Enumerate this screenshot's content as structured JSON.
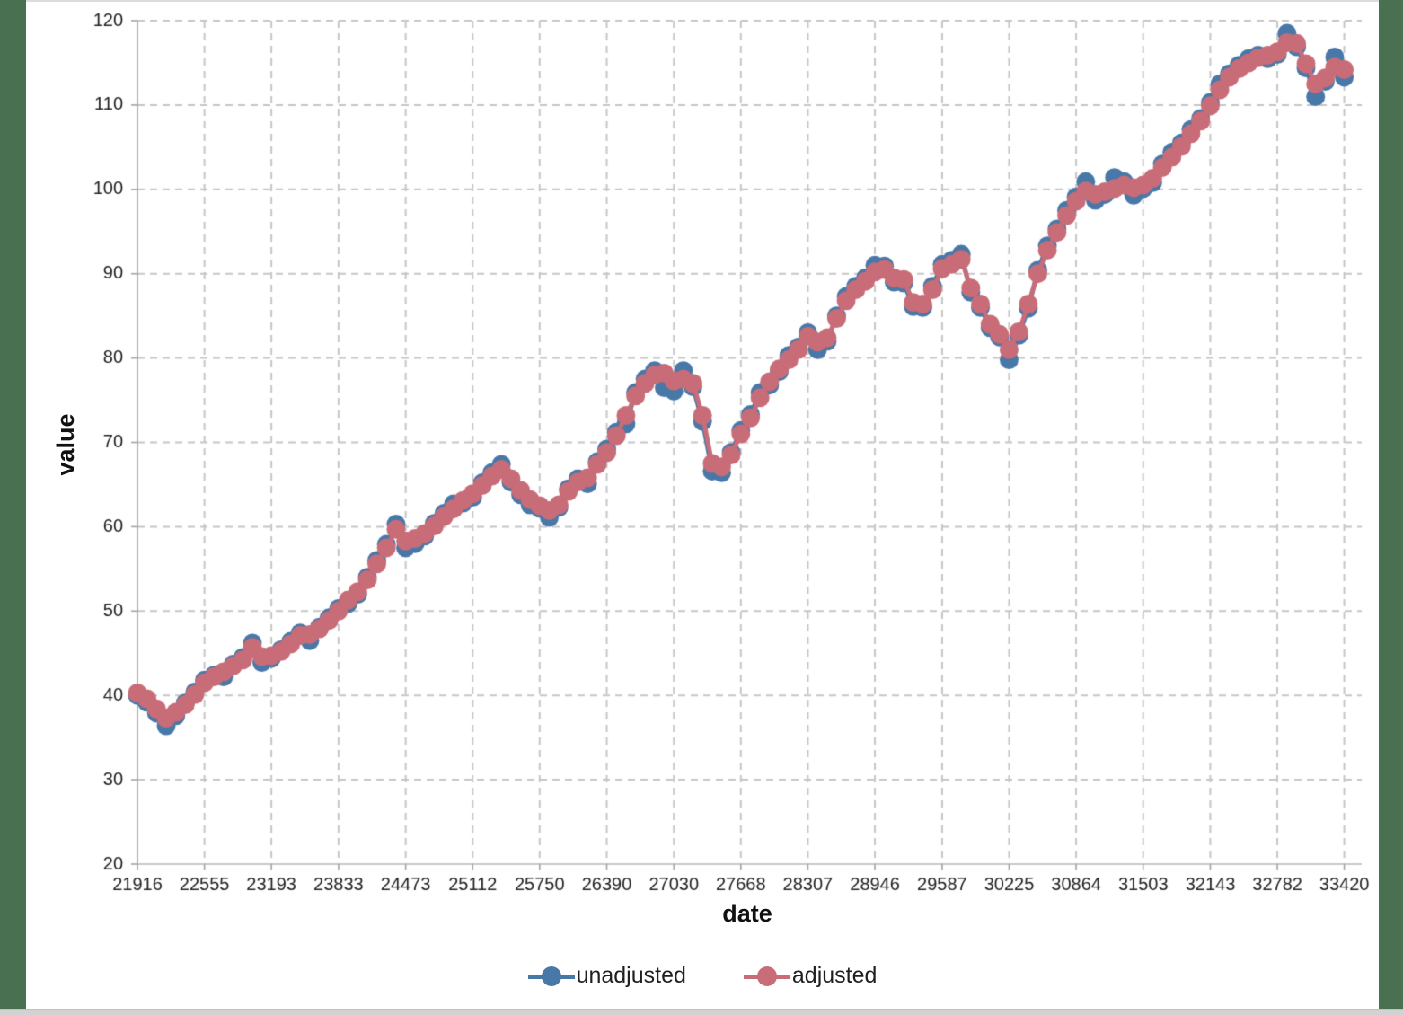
{
  "frame": {
    "side_border_color": "#4a7052",
    "top_line_color": "#dcdcdc",
    "bottom_bar_color": "#d2d2d2"
  },
  "legend": {
    "items": [
      {
        "label": "unadjusted",
        "color": "#4878a8"
      },
      {
        "label": "adjusted",
        "color": "#c86c78"
      }
    ]
  },
  "chart_data": {
    "type": "line",
    "title": "",
    "xlabel": "date",
    "ylabel": "value",
    "xlim": [
      21916,
      33580
    ],
    "ylim": [
      20,
      120
    ],
    "grid": "dashed, both axes",
    "legend_position": "bottom center",
    "grid_color": "#c6c6c6",
    "axis_color": "#a3a3a3",
    "tick_label_color": "#1f1f1f",
    "marker_style": "filled circle, overlapping chain",
    "x_ticks": [
      21916,
      22555,
      23193,
      23833,
      24473,
      25112,
      25750,
      26390,
      27030,
      27668,
      28307,
      28946,
      29587,
      30225,
      30864,
      31503,
      32143,
      32782,
      33420
    ],
    "y_ticks": [
      20,
      30,
      40,
      50,
      60,
      70,
      80,
      90,
      100,
      110,
      120
    ],
    "x": [
      21916,
      22007,
      22098,
      22190,
      22282,
      22372,
      22463,
      22555,
      22647,
      22737,
      22828,
      22920,
      23012,
      23102,
      23193,
      23285,
      23377,
      23468,
      23559,
      23651,
      23743,
      23833,
      23924,
      24016,
      24108,
      24198,
      24289,
      24381,
      24473,
      24563,
      24654,
      24746,
      24838,
      24929,
      25020,
      25112,
      25204,
      25294,
      25385,
      25477,
      25569,
      25659,
      25750,
      25842,
      25934,
      26024,
      26115,
      26207,
      26299,
      26390,
      26481,
      26573,
      26665,
      26755,
      26846,
      26938,
      27030,
      27120,
      27211,
      27303,
      27395,
      27485,
      27576,
      27668,
      27760,
      27851,
      27942,
      28034,
      28126,
      28216,
      28307,
      28399,
      28491,
      28581,
      28672,
      28764,
      28856,
      28946,
      29037,
      29129,
      29221,
      29312,
      29403,
      29495,
      29587,
      29679,
      29769,
      29860,
      29952,
      30044,
      30134,
      30225,
      30317,
      30409,
      30499,
      30590,
      30682,
      30774,
      30864,
      30956,
      31048,
      31138,
      31230,
      31321,
      31413,
      31503,
      31594,
      31686,
      31777,
      31868,
      31959,
      32051,
      32143,
      32234,
      32325,
      32417,
      32509,
      32598,
      32690,
      32782,
      32874,
      32966,
      33055,
      33147,
      33239,
      33329,
      33420
    ],
    "series": [
      {
        "name": "unadjusted",
        "color": "#4878a8",
        "values": [
          40.0,
          39.2,
          37.9,
          36.4,
          37.6,
          39.1,
          40.4,
          41.8,
          42.4,
          42.2,
          43.7,
          44.5,
          46.2,
          43.9,
          44.4,
          45.4,
          46.4,
          47.4,
          46.5,
          48.1,
          49.2,
          50.3,
          50.9,
          52.0,
          54.0,
          56.0,
          57.9,
          60.3,
          57.5,
          58.0,
          58.9,
          60.4,
          61.6,
          62.7,
          62.8,
          63.5,
          65.2,
          66.4,
          67.4,
          65.3,
          63.8,
          62.6,
          62.2,
          61.1,
          62.3,
          64.5,
          65.7,
          65.1,
          67.7,
          69.2,
          71.2,
          72.2,
          75.9,
          77.5,
          78.5,
          76.5,
          76.1,
          78.5,
          76.6,
          72.5,
          66.6,
          66.4,
          68.8,
          71.4,
          73.3,
          75.9,
          76.8,
          78.4,
          80.3,
          81.3,
          83.0,
          81.0,
          82.0,
          85.0,
          87.3,
          88.5,
          89.5,
          91.0,
          90.9,
          89.0,
          88.9,
          86.1,
          86.0,
          88.5,
          91.1,
          91.6,
          92.3,
          87.8,
          86.0,
          83.6,
          82.5,
          79.8,
          82.7,
          85.9,
          90.4,
          93.3,
          95.3,
          97.5,
          99.1,
          100.9,
          98.7,
          99.4,
          101.4,
          100.9,
          99.3,
          100.1,
          100.8,
          103.0,
          104.4,
          105.5,
          107.1,
          108.4,
          110.3,
          112.5,
          113.7,
          114.7,
          115.5,
          115.9,
          115.5,
          116.0,
          118.5,
          116.9,
          114.4,
          111.0,
          112.8,
          115.7,
          113.3
        ]
      },
      {
        "name": "adjusted",
        "color": "#c86c78",
        "values": [
          40.3,
          39.6,
          38.4,
          37.3,
          38.0,
          38.9,
          40.1,
          41.5,
          42.2,
          42.8,
          43.5,
          44.2,
          45.7,
          44.6,
          44.7,
          45.2,
          46.1,
          47.1,
          47.2,
          47.9,
          48.9,
          50.0,
          51.3,
          52.3,
          53.7,
          55.6,
          57.5,
          59.7,
          58.3,
          58.6,
          59.2,
          60.1,
          61.2,
          62.1,
          63.1,
          63.9,
          64.9,
          66.0,
          66.8,
          65.7,
          64.3,
          63.2,
          62.5,
          61.9,
          62.6,
          64.2,
          65.3,
          65.8,
          67.4,
          68.8,
          70.8,
          73.2,
          75.5,
          77.0,
          78.0,
          78.2,
          77.3,
          77.5,
          77.0,
          73.2,
          67.5,
          67.1,
          68.5,
          71.0,
          72.9,
          75.3,
          77.2,
          78.7,
          79.8,
          81.0,
          82.6,
          81.9,
          82.4,
          84.7,
          86.8,
          88.1,
          89.1,
          90.2,
          90.5,
          89.5,
          89.3,
          86.6,
          86.4,
          88.1,
          90.6,
          91.1,
          91.7,
          88.3,
          86.4,
          84.0,
          82.8,
          81.0,
          83.1,
          86.4,
          90.0,
          92.8,
          94.9,
          96.9,
          98.6,
          99.8,
          99.4,
          99.7,
          100.1,
          100.5,
          100.2,
          100.5,
          101.3,
          102.6,
          103.8,
          105.1,
          106.6,
          108.1,
          109.9,
          111.8,
          113.3,
          114.3,
          115.0,
          115.6,
          115.9,
          116.3,
          117.4,
          117.3,
          114.9,
          112.5,
          113.2,
          114.5,
          114.2
        ]
      }
    ]
  }
}
